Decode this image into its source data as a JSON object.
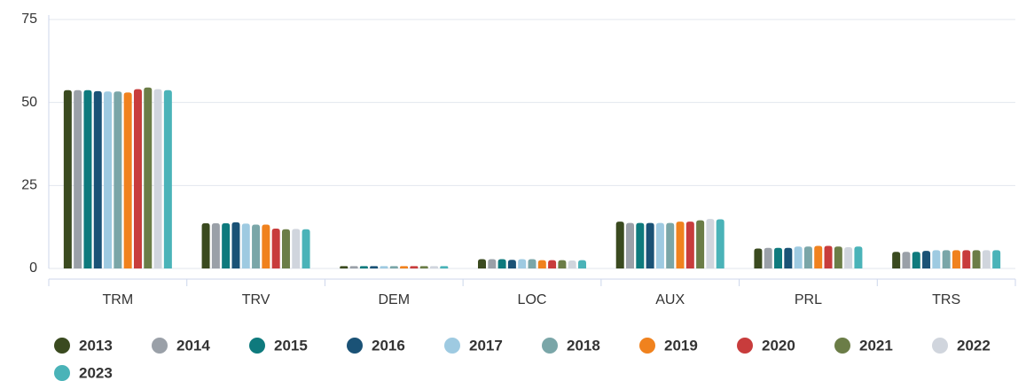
{
  "chart_data": {
    "type": "bar",
    "categories": [
      "TRM",
      "TRV",
      "DEM",
      "LOC",
      "AUX",
      "PRL",
      "TRS"
    ],
    "series": [
      {
        "name": "2013",
        "color": "#3a4a1f",
        "values": [
          53.7,
          13.6,
          0.7,
          2.8,
          14.1,
          6.0,
          5.0
        ]
      },
      {
        "name": "2014",
        "color": "#9aa0a8",
        "values": [
          53.7,
          13.6,
          0.7,
          2.8,
          13.7,
          6.2,
          5.0
        ]
      },
      {
        "name": "2015",
        "color": "#0e7a7d",
        "values": [
          53.7,
          13.6,
          0.7,
          2.8,
          13.7,
          6.2,
          5.0
        ]
      },
      {
        "name": "2016",
        "color": "#1a5276",
        "values": [
          53.4,
          13.9,
          0.7,
          2.6,
          13.7,
          6.2,
          5.3
        ]
      },
      {
        "name": "2017",
        "color": "#9ecae1",
        "values": [
          53.3,
          13.5,
          0.7,
          2.8,
          13.7,
          6.6,
          5.5
        ]
      },
      {
        "name": "2018",
        "color": "#7aa6a8",
        "values": [
          53.3,
          13.2,
          0.7,
          2.8,
          13.7,
          6.6,
          5.5
        ]
      },
      {
        "name": "2019",
        "color": "#f0821e",
        "values": [
          53.0,
          13.2,
          0.7,
          2.5,
          14.1,
          6.8,
          5.5
        ]
      },
      {
        "name": "2020",
        "color": "#c83c3c",
        "values": [
          54.0,
          12.0,
          0.7,
          2.5,
          14.1,
          6.8,
          5.5
        ]
      },
      {
        "name": "2021",
        "color": "#6b7d47",
        "values": [
          54.5,
          11.8,
          0.7,
          2.5,
          14.5,
          6.6,
          5.5
        ]
      },
      {
        "name": "2022",
        "color": "#d0d5dd",
        "values": [
          54.0,
          11.9,
          0.7,
          2.4,
          14.9,
          6.4,
          5.5
        ]
      },
      {
        "name": "2023",
        "color": "#4ab3b8",
        "values": [
          53.7,
          11.8,
          0.7,
          2.5,
          14.8,
          6.6,
          5.5
        ]
      }
    ],
    "ylim": [
      0,
      75
    ],
    "yticks": [
      0,
      25,
      50,
      75
    ],
    "grid": true
  }
}
